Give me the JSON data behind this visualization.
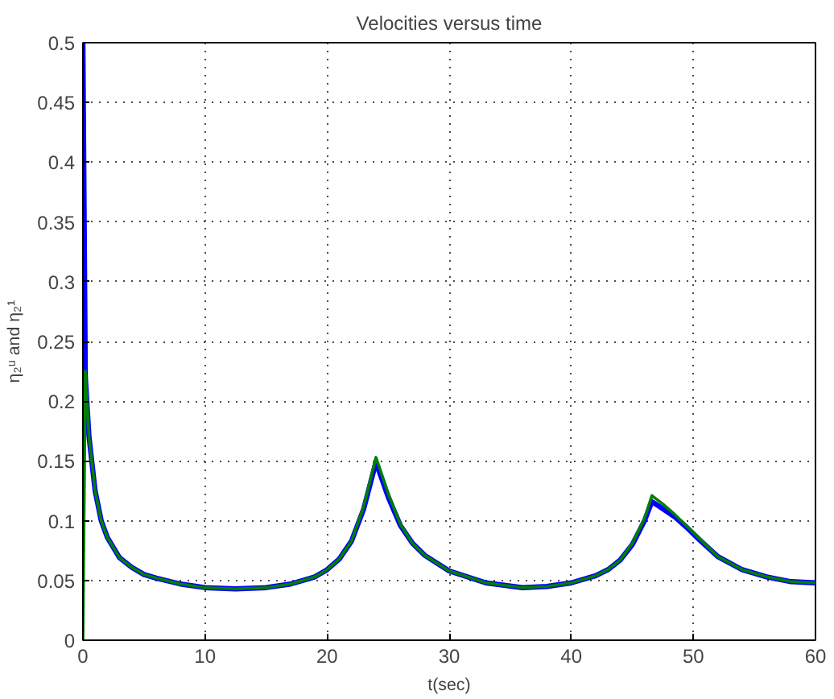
{
  "chart_data": {
    "type": "line",
    "title": "Velocities versus time",
    "xlabel": "t(sec)",
    "ylabel": "η₂ᵘ and η₂¹",
    "xlim": [
      0,
      60
    ],
    "ylim": [
      0,
      0.5
    ],
    "xticks": [
      0,
      10,
      20,
      30,
      40,
      50,
      60
    ],
    "yticks": [
      0,
      0.05,
      0.1,
      0.15,
      0.2,
      0.25,
      0.3,
      0.35,
      0.4,
      0.45,
      0.5
    ],
    "grid": true,
    "line_style": "solid",
    "marker": "none",
    "x": [
      0,
      0.2,
      0.5,
      1,
      1.5,
      2,
      3,
      4,
      5,
      6,
      8,
      10,
      12.5,
      15,
      17,
      19,
      20,
      21,
      22,
      23,
      24,
      25,
      26,
      27,
      28,
      30,
      33,
      36,
      38,
      40,
      42,
      43,
      44,
      45,
      46,
      46.6,
      47.5,
      48.5,
      49.5,
      50.5,
      52,
      54,
      56,
      58,
      60
    ],
    "series": [
      {
        "color": "#0000ff",
        "values": [
          0.5,
          0.22,
          0.17,
          0.125,
          0.1,
          0.086,
          0.069,
          0.061,
          0.055,
          0.052,
          0.047,
          0.044,
          0.043,
          0.044,
          0.047,
          0.053,
          0.059,
          0.068,
          0.083,
          0.11,
          0.149,
          0.12,
          0.096,
          0.081,
          0.071,
          0.058,
          0.048,
          0.044,
          0.045,
          0.048,
          0.054,
          0.059,
          0.067,
          0.08,
          0.1,
          0.116,
          0.11,
          0.103,
          0.094,
          0.084,
          0.07,
          0.059,
          0.053,
          0.049,
          0.048
        ]
      },
      {
        "color": "#008000",
        "values": [
          0,
          0.225,
          0.17,
          0.125,
          0.1,
          0.086,
          0.069,
          0.061,
          0.055,
          0.052,
          0.047,
          0.044,
          0.043,
          0.044,
          0.047,
          0.053,
          0.059,
          0.068,
          0.083,
          0.112,
          0.153,
          0.123,
          0.097,
          0.081,
          0.071,
          0.058,
          0.048,
          0.044,
          0.045,
          0.048,
          0.054,
          0.059,
          0.067,
          0.081,
          0.102,
          0.121,
          0.114,
          0.105,
          0.095,
          0.085,
          0.07,
          0.059,
          0.053,
          0.049,
          0.048
        ]
      }
    ]
  }
}
